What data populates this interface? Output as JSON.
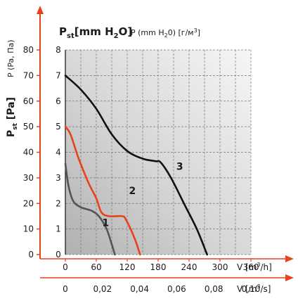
{
  "header": {
    "pst_base": "P",
    "pst_sub": "st",
    "pst_unit": "[mm H",
    "pst_unit_sub": "2",
    "pst_unit_end": "O]",
    "p_label": "P (mm H",
    "p_label_sub": "2",
    "p_label_end": "0) [г/м",
    "p_label_sup": "3",
    "p_label_close": "]",
    "p_pa_label": "P (Pa, Па)"
  },
  "axes": {
    "left_title_base": "P",
    "left_title_sub": "st",
    "left_title_unit": " [Pa]",
    "left_ticks": [
      "0",
      "10",
      "20",
      "30",
      "40",
      "50",
      "60",
      "70",
      "80"
    ],
    "inner_ticks": [
      "0",
      "1",
      "2",
      "3",
      "4",
      "5",
      "6",
      "7",
      "8"
    ],
    "x_ticks_m3h": [
      "0",
      "60",
      "120",
      "180",
      "240",
      "300",
      "360"
    ],
    "x_label_m3h": "V [m",
    "x_label_m3h_sup": "3",
    "x_label_m3h_end": "/h]",
    "x_ticks_m3s": [
      "0",
      "0,02",
      "0,04",
      "0,06",
      "0,08",
      "0,10"
    ],
    "x_label_m3s": "V [m",
    "x_label_m3s_sup": "3",
    "x_label_m3s_end": "/s]"
  },
  "colors": {
    "curve_1": "#555555",
    "curve_2": "#e8421c",
    "curve_3": "#111111",
    "axis_arrow": "#e8421c",
    "plot_bg_dark": "#bdbdbd",
    "plot_bg_light": "#f4f4f4"
  },
  "chart_data": {
    "type": "line",
    "x_unit": "m3/h",
    "y_unit": "mm H2O",
    "xlim": [
      0,
      360
    ],
    "ylim": [
      0,
      8
    ],
    "grid": true,
    "series": [
      {
        "name": "1",
        "color": "#555555",
        "points": [
          [
            0,
            3.55
          ],
          [
            6,
            2.7
          ],
          [
            15,
            2.1
          ],
          [
            30,
            1.85
          ],
          [
            50,
            1.72
          ],
          [
            65,
            1.5
          ],
          [
            80,
            1.0
          ],
          [
            90,
            0.4
          ],
          [
            96,
            0.0
          ]
        ]
      },
      {
        "name": "2",
        "color": "#e8421c",
        "points": [
          [
            0,
            5.0
          ],
          [
            10,
            4.7
          ],
          [
            25,
            3.8
          ],
          [
            45,
            2.8
          ],
          [
            60,
            2.2
          ],
          [
            70,
            1.65
          ],
          [
            85,
            1.5
          ],
          [
            110,
            1.5
          ],
          [
            118,
            1.35
          ],
          [
            135,
            0.6
          ],
          [
            145,
            0.0
          ]
        ]
      },
      {
        "name": "3",
        "color": "#111111",
        "points": [
          [
            0,
            7.0
          ],
          [
            30,
            6.45
          ],
          [
            60,
            5.7
          ],
          [
            90,
            4.7
          ],
          [
            120,
            4.05
          ],
          [
            150,
            3.75
          ],
          [
            175,
            3.65
          ],
          [
            185,
            3.6
          ],
          [
            205,
            3.0
          ],
          [
            230,
            2.0
          ],
          [
            255,
            1.0
          ],
          [
            275,
            0.0
          ]
        ]
      }
    ],
    "annotations": [
      {
        "text": "1",
        "x": 78,
        "y": 1.25
      },
      {
        "text": "2",
        "x": 130,
        "y": 2.5
      },
      {
        "text": "3",
        "x": 222,
        "y": 3.45
      }
    ],
    "secondary_y": {
      "label": "Pst [Pa]",
      "ticks": [
        0,
        10,
        20,
        30,
        40,
        50,
        60,
        70,
        80
      ]
    },
    "secondary_x": {
      "label": "V [m3/s]",
      "ticks": [
        0,
        0.02,
        0.04,
        0.06,
        0.08,
        0.1
      ]
    }
  }
}
